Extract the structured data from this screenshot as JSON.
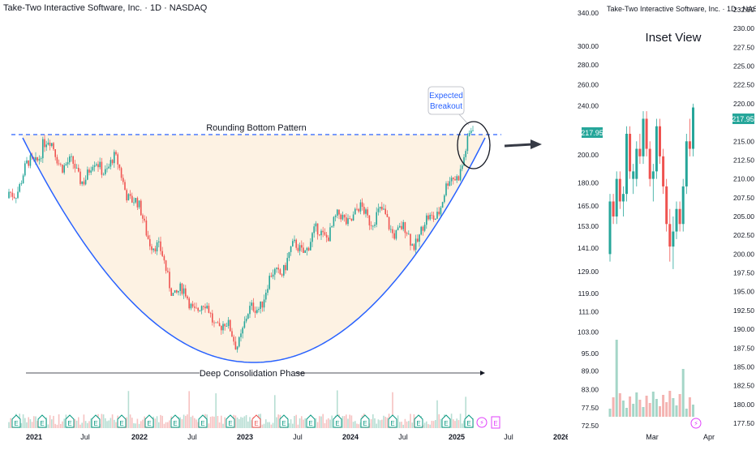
{
  "main_chart": {
    "symbol_title": "Take-Two Interactive Software, Inc. · 1D · NASDAQ",
    "pattern_label": "Rounding Bottom Pattern",
    "consolidation_label": "Deep Consolidation Phase",
    "breakout_label_line1": "Expected",
    "breakout_label_line2": "Breakout",
    "event_badge_letter": "E",
    "colors": {
      "up": "#26a69a",
      "down": "#ef5350",
      "curve": "#2962ff",
      "fill": "#fdf2e3",
      "event": "#089981",
      "event_future": "#e040fb",
      "resistance": "#2962ff"
    }
  },
  "inset_chart": {
    "symbol_title": "Take-Two Interactive Software, Inc. · 1D · NASDAQ",
    "inset_label": "Inset View",
    "last_price": "217.95",
    "event_badge_letter": "E"
  },
  "chart_data": [
    {
      "type": "candlestick",
      "title": "Take-Two Interactive Software, Inc. · 1D · NASDAQ",
      "x_ticks": [
        "2021",
        "Jul",
        "2022",
        "Jul",
        "2023",
        "Jul",
        "2024",
        "Jul",
        "2025",
        "Jul",
        "2026"
      ],
      "y_ticks": [
        "340.00",
        "300.00",
        "280.00",
        "260.00",
        "240.00",
        "217.95",
        "200.00",
        "180.00",
        "165.00",
        "153.00",
        "141.00",
        "129.00",
        "119.00",
        "111.00",
        "103.00",
        "95.00",
        "89.00",
        "83.00",
        "77.50",
        "72.50"
      ],
      "y_scale": "log",
      "ylim": [
        72.5,
        340
      ],
      "series": [
        {
          "name": "Price",
          "x": [
            "2020-10",
            "2021-01",
            "2021-02",
            "2021-06",
            "2021-10",
            "2022-01",
            "2022-05",
            "2022-09",
            "2022-12",
            "2023-03",
            "2023-06",
            "2023-10",
            "2024-01",
            "2024-04",
            "2024-08",
            "2024-10",
            "2025-01",
            "2025-03"
          ],
          "close": [
            170,
            195,
            210,
            185,
            195,
            160,
            120,
            110,
            100,
            118,
            137,
            150,
            160,
            160,
            145,
            155,
            185,
            217.95
          ]
        }
      ],
      "annotations": [
        "Rounding Bottom Pattern",
        "Deep Consolidation Phase",
        "Expected Breakout"
      ],
      "resistance_level": 212
    },
    {
      "type": "candlestick",
      "title": "Take-Two Interactive Software, Inc. · 1D · NASDAQ",
      "x_ticks": [
        "Mar",
        "Apr"
      ],
      "y_ticks": [
        "232.50",
        "230.00",
        "227.50",
        "225.00",
        "222.50",
        "220.00",
        "217.95",
        "215.00",
        "212.50",
        "210.00",
        "207.50",
        "205.00",
        "202.50",
        "200.00",
        "197.50",
        "195.00",
        "192.50",
        "190.00",
        "187.50",
        "185.00",
        "182.50",
        "180.00",
        "177.50"
      ],
      "ylim": [
        177.5,
        232.5
      ],
      "annotations": [
        "Inset View"
      ],
      "last_price": 217.95
    }
  ]
}
